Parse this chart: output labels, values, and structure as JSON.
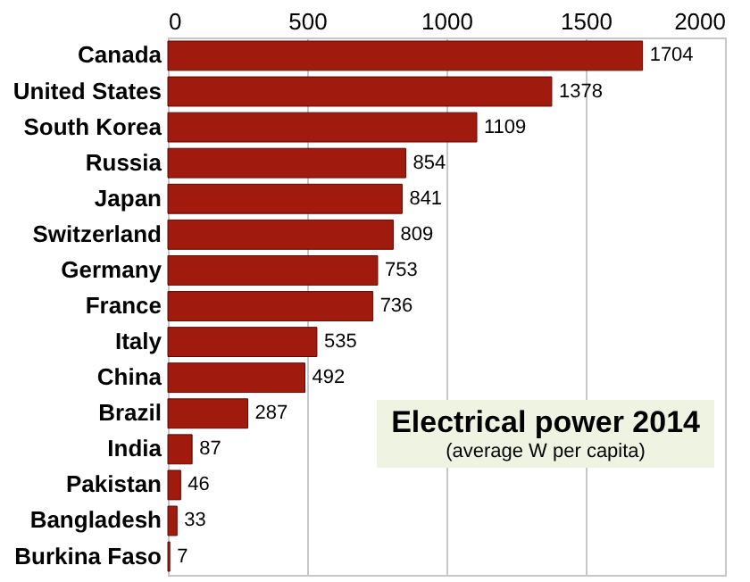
{
  "chart_data": {
    "type": "bar",
    "orientation": "horizontal",
    "title": "Electrical power 2014",
    "subtitle": "(average W per capita)",
    "categories": [
      "Canada",
      "United States",
      "South Korea",
      "Russia",
      "Japan",
      "Switzerland",
      "Germany",
      "France",
      "Italy",
      "China",
      "Brazil",
      "India",
      "Pakistan",
      "Bangladesh",
      "Burkina Faso"
    ],
    "values": [
      1704,
      1378,
      1109,
      854,
      841,
      809,
      753,
      736,
      535,
      492,
      287,
      87,
      46,
      33,
      7
    ],
    "color": "#a01a0e",
    "xlim": [
      0,
      2000
    ],
    "xticks": [
      0,
      500,
      1000,
      1500,
      2000
    ],
    "grid": "x",
    "data_labels": true
  }
}
